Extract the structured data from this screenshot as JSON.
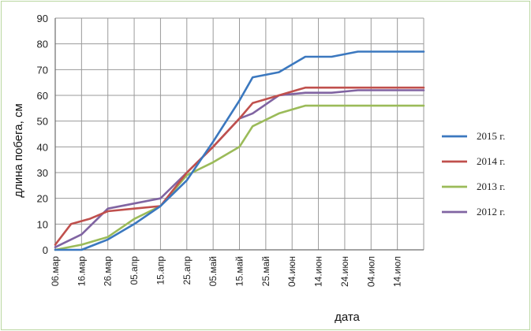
{
  "chart_data": {
    "type": "line",
    "title": "",
    "xlabel": "дата",
    "ylabel": "длина побега, см",
    "ylim": [
      0,
      90
    ],
    "yticks": [
      "0",
      "10",
      "20",
      "30",
      "40",
      "50",
      "60",
      "70",
      "80",
      "90"
    ],
    "grid": true,
    "legend_position": "right",
    "x_tick_labels": [
      "06.мар",
      "16.мар",
      "26.мар",
      "05.апр",
      "15.апр",
      "25.апр",
      "05.май",
      "15.май",
      "25.май",
      "04.июн",
      "14.июн",
      "24.июн",
      "04.июл",
      "14.июл"
    ],
    "x_range": [
      "06.мар",
      "24.июл"
    ],
    "series": [
      {
        "name": "2015 г.",
        "color": "#3b78bf",
        "points": [
          [
            "06.мар",
            0
          ],
          [
            "16.мар",
            0
          ],
          [
            "26.мар",
            4
          ],
          [
            "05.апр",
            10
          ],
          [
            "15.апр",
            17
          ],
          [
            "25.апр",
            27
          ],
          [
            "05.май",
            42
          ],
          [
            "15.май",
            58
          ],
          [
            "20.май",
            67
          ],
          [
            "30.май",
            69
          ],
          [
            "09.июн",
            75
          ],
          [
            "19.июн",
            75
          ],
          [
            "29.июн",
            77
          ],
          [
            "09.июл",
            77
          ],
          [
            "24.июл",
            77
          ]
        ]
      },
      {
        "name": "2014 г.",
        "color": "#c0504d",
        "points": [
          [
            "06.мар",
            2
          ],
          [
            "12.мар",
            10
          ],
          [
            "19.мар",
            12
          ],
          [
            "26.мар",
            15
          ],
          [
            "05.апр",
            16
          ],
          [
            "15.апр",
            17
          ],
          [
            "25.апр",
            30
          ],
          [
            "05.май",
            40
          ],
          [
            "15.май",
            51
          ],
          [
            "20.май",
            57
          ],
          [
            "30.май",
            60
          ],
          [
            "09.июн",
            63
          ],
          [
            "19.июн",
            63
          ],
          [
            "29.июн",
            63
          ],
          [
            "09.июл",
            63
          ],
          [
            "24.июл",
            63
          ]
        ]
      },
      {
        "name": "2013 г.",
        "color": "#9bbb59",
        "points": [
          [
            "06.мар",
            0
          ],
          [
            "16.мар",
            2
          ],
          [
            "26.мар",
            5
          ],
          [
            "05.апр",
            12
          ],
          [
            "15.апр",
            17
          ],
          [
            "25.апр",
            29
          ],
          [
            "05.май",
            34
          ],
          [
            "15.май",
            40
          ],
          [
            "20.май",
            48
          ],
          [
            "30.май",
            53
          ],
          [
            "09.июн",
            56
          ],
          [
            "19.июн",
            56
          ],
          [
            "29.июн",
            56
          ],
          [
            "09.июл",
            56
          ],
          [
            "24.июл",
            56
          ]
        ]
      },
      {
        "name": "2012 г.",
        "color": "#8064a2",
        "points": [
          [
            "06.мар",
            1
          ],
          [
            "16.мар",
            6
          ],
          [
            "26.мар",
            16
          ],
          [
            "05.апр",
            18
          ],
          [
            "15.апр",
            20
          ],
          [
            "25.апр",
            30
          ],
          [
            "05.май",
            40
          ],
          [
            "15.май",
            51
          ],
          [
            "20.май",
            53
          ],
          [
            "30.май",
            60
          ],
          [
            "09.июн",
            61
          ],
          [
            "19.июн",
            61
          ],
          [
            "29.июн",
            62
          ],
          [
            "09.июл",
            62
          ],
          [
            "24.июл",
            62
          ]
        ]
      }
    ]
  }
}
